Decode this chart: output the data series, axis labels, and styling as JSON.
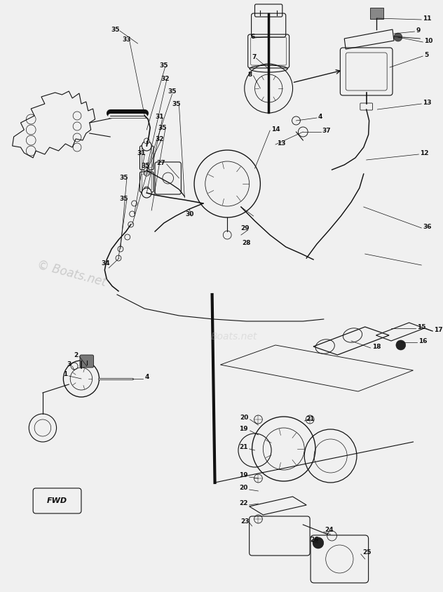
{
  "background_color": "#f0f0f0",
  "watermark_text": "© Boats.net",
  "watermark_color": "#bbbbbb",
  "watermark2_text": "Boats.net",
  "line_color": "#111111",
  "label_color": "#111111",
  "fwd_label": "FWD",
  "title": ""
}
